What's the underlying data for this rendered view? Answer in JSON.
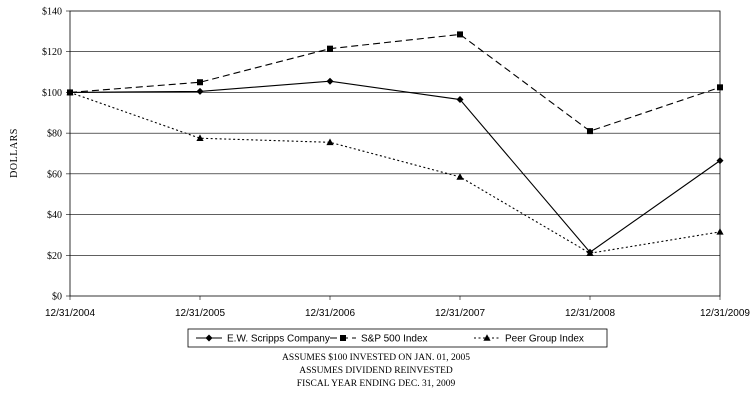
{
  "chart_data": {
    "type": "line",
    "ylabel": "DOLLARS",
    "xlabel": "",
    "categories": [
      "12/31/2004",
      "12/31/2005",
      "12/31/2006",
      "12/31/2007",
      "12/31/2008",
      "12/31/2009"
    ],
    "ylim": [
      0,
      140
    ],
    "yticks": [
      "$0",
      "$20",
      "$40",
      "$60",
      "$80",
      "$100",
      "$120",
      "$140"
    ],
    "ytick_values": [
      0,
      20,
      40,
      60,
      80,
      100,
      120,
      140
    ],
    "grid": "horizontal",
    "legend_position": "bottom-center",
    "series": [
      {
        "name": "E.W. Scripps Company",
        "values": [
          100,
          100.5,
          105.5,
          96.5,
          21.5,
          66.5
        ],
        "marker": "diamond",
        "dash": "solid",
        "color": "#000000"
      },
      {
        "name": "S&P 500 Index",
        "values": [
          100,
          105,
          121.5,
          128.5,
          81,
          102.5
        ],
        "marker": "square",
        "dash": "long-dash",
        "color": "#000000"
      },
      {
        "name": "Peer Group Index",
        "values": [
          100,
          77.5,
          75.5,
          58.5,
          21,
          31.5
        ],
        "marker": "triangle",
        "dash": "dotted",
        "color": "#000000"
      }
    ]
  },
  "footnotes": [
    "ASSUMES $100 INVESTED ON JAN. 01, 2005",
    "ASSUMES DIVIDEND REINVESTED",
    "FISCAL YEAR ENDING DEC. 31, 2009"
  ]
}
